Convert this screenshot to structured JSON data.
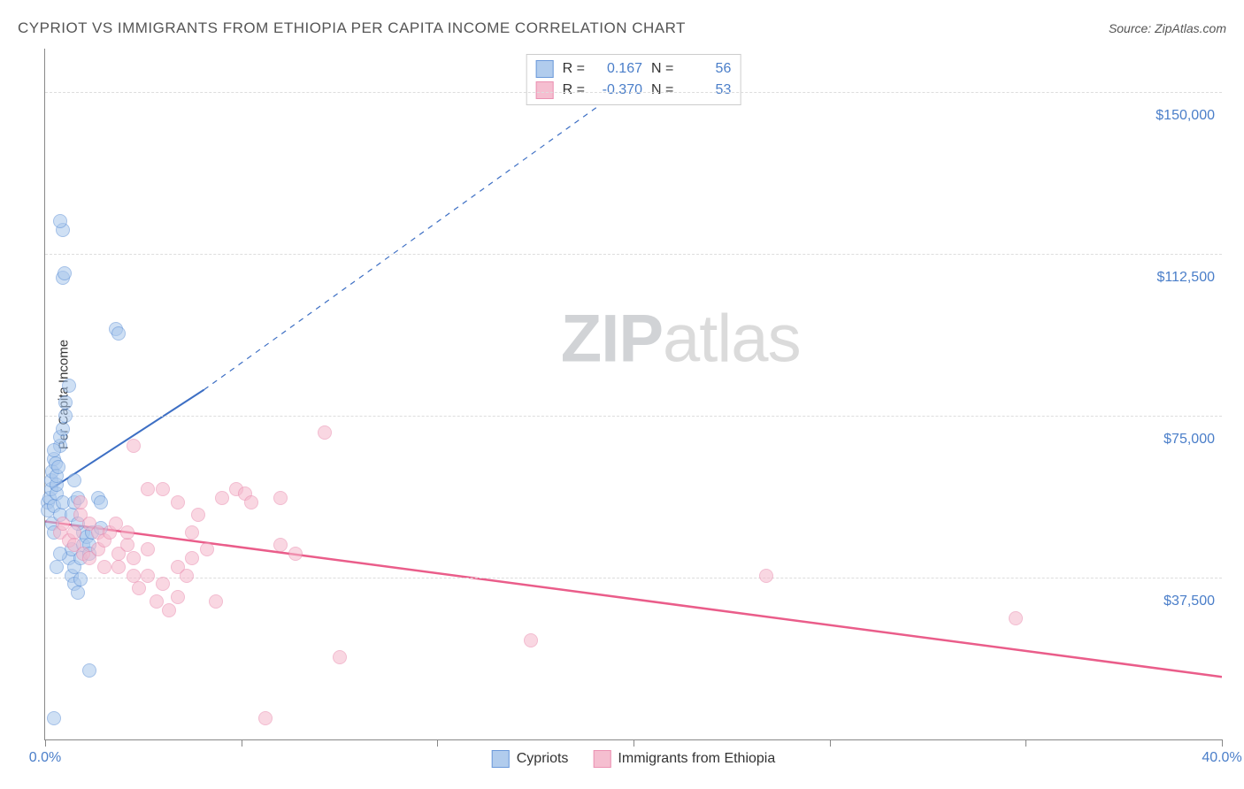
{
  "title": "CYPRIOT VS IMMIGRANTS FROM ETHIOPIA PER CAPITA INCOME CORRELATION CHART",
  "source_label": "Source: ZipAtlas.com",
  "y_axis_label": "Per Capita Income",
  "watermark_a": "ZIP",
  "watermark_b": "atlas",
  "chart": {
    "type": "scatter",
    "xlim": [
      0,
      40
    ],
    "ylim": [
      0,
      160000
    ],
    "x_ticks": [
      0,
      6.67,
      13.33,
      20,
      26.67,
      33.33,
      40
    ],
    "x_tick_labels_shown": {
      "0": "0.0%",
      "40": "40.0%"
    },
    "y_grid": [
      37500,
      75000,
      112500,
      150000
    ],
    "y_tick_labels": [
      "$37,500",
      "$75,000",
      "$112,500",
      "$150,000"
    ],
    "grid_color": "#dddddd",
    "axis_color": "#888888",
    "background": "#ffffff",
    "marker_radius": 8,
    "marker_stroke_width": 1.5,
    "series": [
      {
        "name": "Cypriots",
        "fill": "#a9c7ec",
        "stroke": "#5b8fd6",
        "fill_opacity": 0.55,
        "r_value": "0.167",
        "n_value": "56",
        "trend": {
          "x1": 0.2,
          "y1": 58000,
          "x2": 5.4,
          "y2": 81000,
          "dash_x2": 20.5,
          "dash_y2": 155000,
          "color": "#3d6fc4",
          "width": 2
        },
        "points": [
          [
            0.1,
            55000
          ],
          [
            0.1,
            53000
          ],
          [
            0.15,
            56000
          ],
          [
            0.2,
            58000
          ],
          [
            0.2,
            60000
          ],
          [
            0.25,
            62000
          ],
          [
            0.25,
            50000
          ],
          [
            0.3,
            54000
          ],
          [
            0.3,
            48000
          ],
          [
            0.3,
            65000
          ],
          [
            0.4,
            57000
          ],
          [
            0.4,
            59000
          ],
          [
            0.5,
            52000
          ],
          [
            0.5,
            68000
          ],
          [
            0.5,
            70000
          ],
          [
            0.6,
            72000
          ],
          [
            0.6,
            55000
          ],
          [
            0.7,
            78000
          ],
          [
            0.7,
            75000
          ],
          [
            0.8,
            82000
          ],
          [
            0.8,
            42000
          ],
          [
            0.9,
            44000
          ],
          [
            0.9,
            38000
          ],
          [
            1.0,
            40000
          ],
          [
            1.0,
            36000
          ],
          [
            1.1,
            34000
          ],
          [
            1.2,
            37000
          ],
          [
            1.2,
            42000
          ],
          [
            1.3,
            45000
          ],
          [
            1.3,
            48000
          ],
          [
            0.6,
            107000
          ],
          [
            0.65,
            108000
          ],
          [
            0.6,
            118000
          ],
          [
            0.5,
            120000
          ],
          [
            2.4,
            95000
          ],
          [
            2.5,
            94000
          ],
          [
            0.9,
            52000
          ],
          [
            1.0,
            55000
          ],
          [
            1.1,
            50000
          ],
          [
            1.4,
            47000
          ],
          [
            1.5,
            45000
          ],
          [
            1.5,
            43000
          ],
          [
            1.6,
            48000
          ],
          [
            1.0,
            60000
          ],
          [
            1.1,
            56000
          ],
          [
            1.8,
            56000
          ],
          [
            1.9,
            55000
          ],
          [
            1.9,
            49000
          ],
          [
            0.4,
            40000
          ],
          [
            0.5,
            43000
          ],
          [
            1.5,
            16000
          ],
          [
            0.3,
            5000
          ],
          [
            0.3,
            67000
          ],
          [
            0.35,
            64000
          ],
          [
            0.4,
            61000
          ],
          [
            0.45,
            63000
          ]
        ]
      },
      {
        "name": "Immigrants from Ethiopia",
        "fill": "#f5b8cc",
        "stroke": "#e986aa",
        "fill_opacity": 0.55,
        "r_value": "-0.370",
        "n_value": "53",
        "trend": {
          "x1": 0,
          "y1": 50500,
          "x2": 40,
          "y2": 14500,
          "color": "#ea5d8a",
          "width": 2.5
        },
        "points": [
          [
            0.5,
            48000
          ],
          [
            0.6,
            50000
          ],
          [
            0.8,
            46000
          ],
          [
            1.0,
            48000
          ],
          [
            1.0,
            45000
          ],
          [
            1.2,
            52000
          ],
          [
            1.3,
            43000
          ],
          [
            1.5,
            42000
          ],
          [
            1.5,
            50000
          ],
          [
            1.8,
            48000
          ],
          [
            1.8,
            44000
          ],
          [
            2.0,
            46000
          ],
          [
            2.0,
            40000
          ],
          [
            2.2,
            48000
          ],
          [
            2.4,
            50000
          ],
          [
            2.5,
            43000
          ],
          [
            2.5,
            40000
          ],
          [
            2.8,
            45000
          ],
          [
            2.8,
            48000
          ],
          [
            3.0,
            42000
          ],
          [
            3.0,
            38000
          ],
          [
            3.2,
            35000
          ],
          [
            3.5,
            44000
          ],
          [
            3.5,
            38000
          ],
          [
            3.8,
            32000
          ],
          [
            4.0,
            36000
          ],
          [
            4.2,
            30000
          ],
          [
            4.5,
            33000
          ],
          [
            4.5,
            40000
          ],
          [
            4.8,
            38000
          ],
          [
            5.0,
            42000
          ],
          [
            5.0,
            48000
          ],
          [
            5.2,
            52000
          ],
          [
            5.5,
            44000
          ],
          [
            5.8,
            32000
          ],
          [
            6.0,
            56000
          ],
          [
            6.5,
            58000
          ],
          [
            6.8,
            57000
          ],
          [
            7.0,
            55000
          ],
          [
            8.0,
            56000
          ],
          [
            8.0,
            45000
          ],
          [
            8.5,
            43000
          ],
          [
            9.5,
            71000
          ],
          [
            10.0,
            19000
          ],
          [
            7.5,
            5000
          ],
          [
            3.0,
            68000
          ],
          [
            3.5,
            58000
          ],
          [
            4.0,
            58000
          ],
          [
            4.5,
            55000
          ],
          [
            16.5,
            23000
          ],
          [
            24.5,
            38000
          ],
          [
            33.0,
            28000
          ],
          [
            1.2,
            55000
          ]
        ]
      }
    ]
  },
  "stat_legend": {
    "r_label": "R =",
    "n_label": "N ="
  },
  "bottom_legend": {
    "label1": "Cypriots",
    "label2": "Immigrants from Ethiopia"
  }
}
